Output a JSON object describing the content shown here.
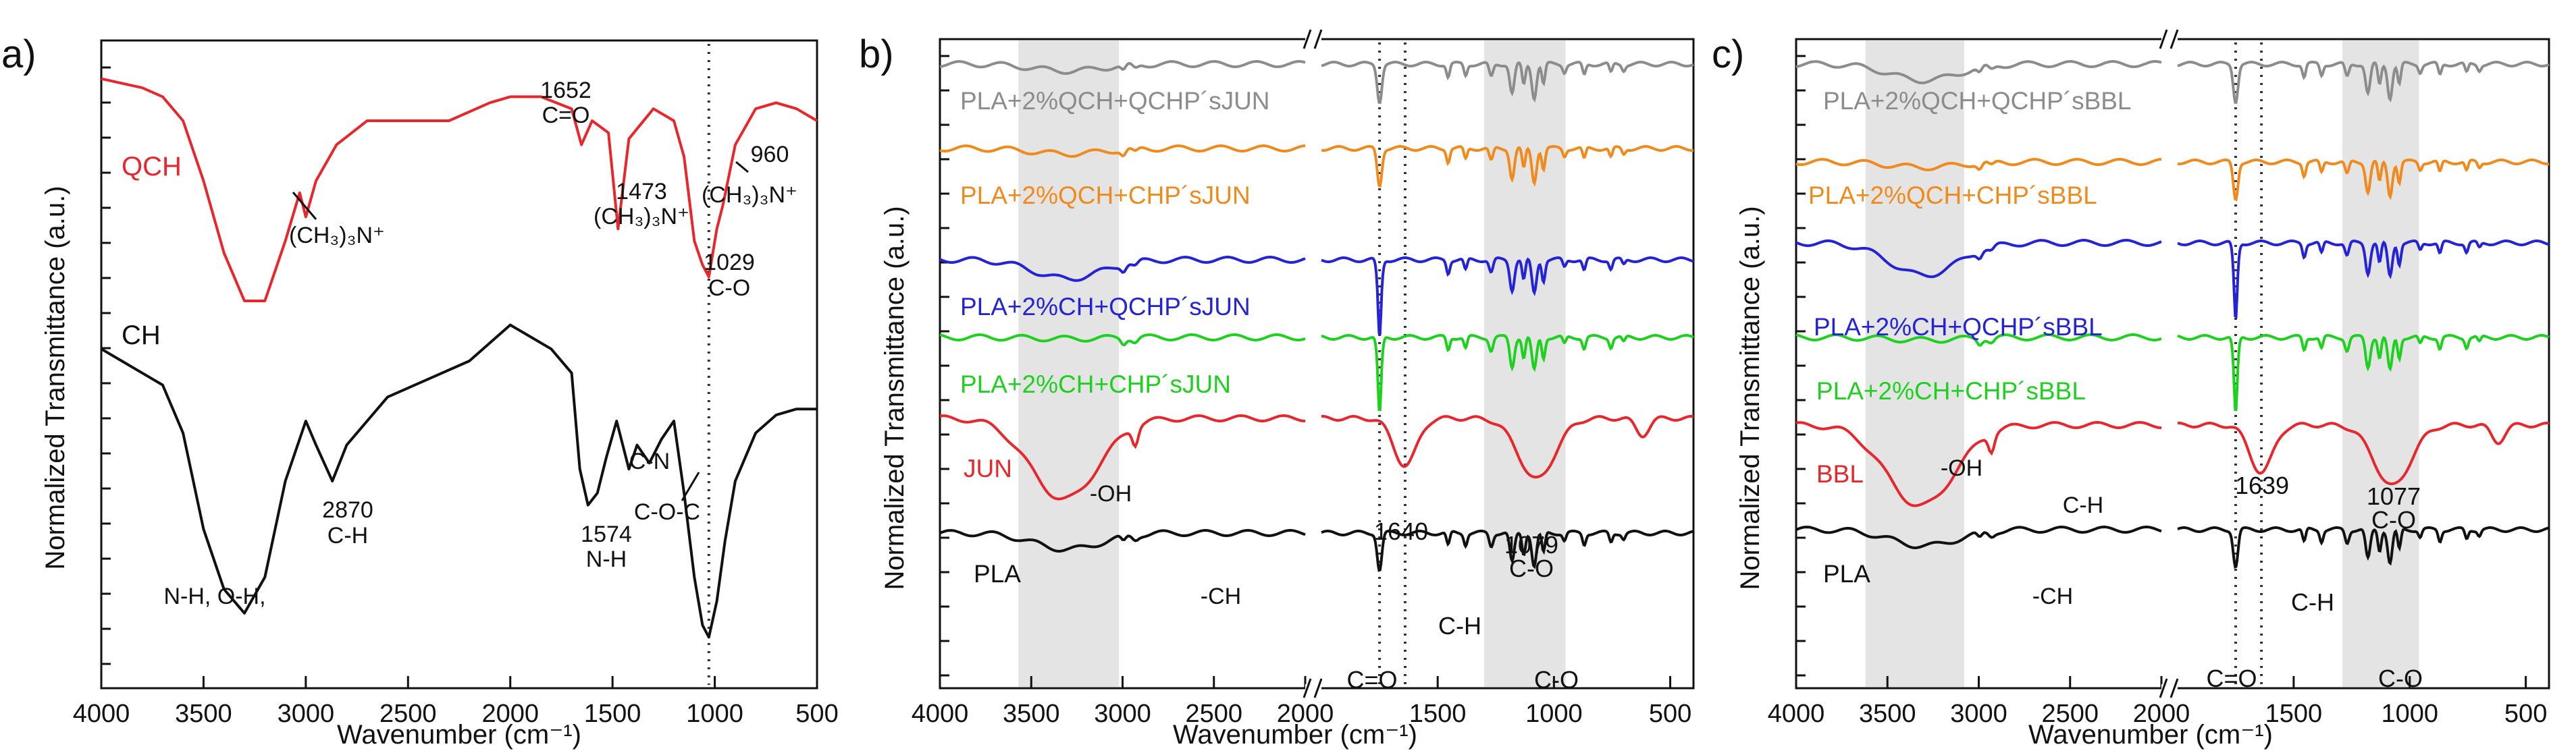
{
  "chart_data": [
    {
      "panel_label": "a)",
      "type": "line",
      "xlabel": "Wavenumber (cm⁻¹)",
      "ylabel": "Normalized Transmittance (a.u.)",
      "xlim": [
        4000,
        500
      ],
      "x_ticks": [
        "4000",
        "3500",
        "3000",
        "2500",
        "2000",
        "1500",
        "1000",
        "500"
      ],
      "reference_line": 1029,
      "series": [
        {
          "name": "QCH",
          "color": "#e8262b",
          "points": [
            [
              4000,
              0.97
            ],
            [
              3800,
              0.955
            ],
            [
              3700,
              0.94
            ],
            [
              3600,
              0.9
            ],
            [
              3500,
              0.8
            ],
            [
              3400,
              0.68
            ],
            [
              3300,
              0.6
            ],
            [
              3200,
              0.6
            ],
            [
              3100,
              0.7
            ],
            [
              3030,
              0.78
            ],
            [
              3000,
              0.74
            ],
            [
              2950,
              0.8
            ],
            [
              2850,
              0.86
            ],
            [
              2700,
              0.9
            ],
            [
              2500,
              0.9
            ],
            [
              2300,
              0.9
            ],
            [
              2100,
              0.93
            ],
            [
              2000,
              0.94
            ],
            [
              1850,
              0.94
            ],
            [
              1700,
              0.92
            ],
            [
              1652,
              0.86
            ],
            [
              1600,
              0.9
            ],
            [
              1520,
              0.88
            ],
            [
              1473,
              0.72
            ],
            [
              1420,
              0.87
            ],
            [
              1300,
              0.92
            ],
            [
              1200,
              0.9
            ],
            [
              1150,
              0.84
            ],
            [
              1100,
              0.7
            ],
            [
              1060,
              0.66
            ],
            [
              1029,
              0.64
            ],
            [
              990,
              0.72
            ],
            [
              960,
              0.76
            ],
            [
              900,
              0.86
            ],
            [
              800,
              0.92
            ],
            [
              700,
              0.93
            ],
            [
              600,
              0.92
            ],
            [
              500,
              0.9
            ]
          ],
          "label_value_offset": 0
        },
        {
          "name": "CH",
          "color": "#111111",
          "points": [
            [
              4000,
              0.52
            ],
            [
              3900,
              0.5
            ],
            [
              3800,
              0.48
            ],
            [
              3700,
              0.46
            ],
            [
              3600,
              0.38
            ],
            [
              3500,
              0.22
            ],
            [
              3400,
              0.12
            ],
            [
              3300,
              0.08
            ],
            [
              3200,
              0.14
            ],
            [
              3100,
              0.3
            ],
            [
              3000,
              0.4
            ],
            [
              2950,
              0.36
            ],
            [
              2870,
              0.3
            ],
            [
              2800,
              0.36
            ],
            [
              2600,
              0.44
            ],
            [
              2400,
              0.47
            ],
            [
              2200,
              0.5
            ],
            [
              2000,
              0.56
            ],
            [
              1900,
              0.54
            ],
            [
              1800,
              0.52
            ],
            [
              1700,
              0.48
            ],
            [
              1660,
              0.32
            ],
            [
              1620,
              0.26
            ],
            [
              1574,
              0.28
            ],
            [
              1530,
              0.34
            ],
            [
              1480,
              0.4
            ],
            [
              1420,
              0.32
            ],
            [
              1380,
              0.36
            ],
            [
              1320,
              0.33
            ],
            [
              1260,
              0.37
            ],
            [
              1200,
              0.4
            ],
            [
              1150,
              0.28
            ],
            [
              1100,
              0.14
            ],
            [
              1060,
              0.06
            ],
            [
              1029,
              0.04
            ],
            [
              990,
              0.1
            ],
            [
              950,
              0.2
            ],
            [
              900,
              0.3
            ],
            [
              800,
              0.38
            ],
            [
              700,
              0.41
            ],
            [
              600,
              0.42
            ],
            [
              500,
              0.42
            ]
          ]
        }
      ],
      "annotations": [
        {
          "text": "1652",
          "text2": "C=O",
          "x": 1652,
          "y": 0.86
        },
        {
          "text": "(CH₃)₃N⁺",
          "x": 3030,
          "y": 0.78,
          "arrow": true
        },
        {
          "text": "1473",
          "text2": "(CH₃)₃N⁺",
          "x": 1473,
          "y": 0.72
        },
        {
          "text": "960",
          "text2": "(CH₃)₃N⁺",
          "x": 960,
          "y": 0.76,
          "arrow": true
        },
        {
          "text": "1029",
          "text2": "C-O",
          "x": 1029,
          "y": 0.55
        },
        {
          "text": "2870",
          "text2": "C-H",
          "x": 2870,
          "y": 0.3
        },
        {
          "text": "N-H, O-H,",
          "x": 3300,
          "y": 0.08
        },
        {
          "text": "1574",
          "text2": "N-H",
          "x": 1574,
          "y": 0.28
        },
        {
          "text": "C-N",
          "x": 1380,
          "y": 0.36
        },
        {
          "text": "C-O-C",
          "x": 1150,
          "y": 0.28
        }
      ]
    },
    {
      "panel_label": "b)",
      "type": "line",
      "xlabel": "Wavenumber (cm⁻¹)",
      "ylabel": "Normalized Transmittance (a.u.)",
      "xlim_left": [
        4000,
        2000
      ],
      "xlim_right": [
        2000,
        400
      ],
      "x_ticks_left": [
        "4000",
        "3500",
        "3000",
        "2500",
        "2000"
      ],
      "x_ticks_right": [
        "1500",
        "1000",
        "500"
      ],
      "reference_lines": [
        1750,
        1640
      ],
      "shaded_ranges": [
        [
          3570,
          3020
        ],
        [
          1300,
          950
        ]
      ],
      "series": [
        {
          "name": "PLA+2%QCH+QCHP´sJUN",
          "color": "#8c8c8c"
        },
        {
          "name": "PLA+2%QCH+CHP´sJUN",
          "color": "#f08a1d"
        },
        {
          "name": "PLA+2%CH+QCHP´sJUN",
          "color": "#2424d6"
        },
        {
          "name": "PLA+2%CH+CHP´sJUN",
          "color": "#1fd11f"
        },
        {
          "name": "JUN",
          "color": "#e8262b"
        },
        {
          "name": "PLA",
          "color": "#111111"
        }
      ],
      "annotations": [
        {
          "text": "-OH",
          "x": 3200
        },
        {
          "text": "-CH",
          "x": 2900
        },
        {
          "text": "1640",
          "x": 1640
        },
        {
          "text": "1079",
          "text2": "C-O",
          "x": 1079
        },
        {
          "text": "C=O",
          "x": 1750
        },
        {
          "text": "C-H",
          "x": 1450
        },
        {
          "text": "C-O",
          "x": 1100
        }
      ]
    },
    {
      "panel_label": "c)",
      "type": "line",
      "xlabel": "Wavenumber (cm⁻¹)",
      "ylabel": "Normalized Transmittance (a.u.)",
      "xlim_left": [
        4000,
        2000
      ],
      "xlim_right": [
        2000,
        400
      ],
      "x_ticks_left": [
        "4000",
        "3500",
        "3000",
        "2500",
        "2000"
      ],
      "x_ticks_right": [
        "1500",
        "1000",
        "500"
      ],
      "reference_lines": [
        1750,
        1639
      ],
      "shaded_ranges": [
        [
          3620,
          3080
        ],
        [
          1290,
          960
        ]
      ],
      "series": [
        {
          "name": "PLA+2%QCH+QCHP´sBBL",
          "color": "#8c8c8c"
        },
        {
          "name": "PLA+2%QCH+CHP´sBBL",
          "color": "#f08a1d"
        },
        {
          "name": "PLA+2%CH+QCHP´sBBL",
          "color": "#2424d6"
        },
        {
          "name": "PLA+2%CH+CHP´sBBL",
          "color": "#1fd11f"
        },
        {
          "name": "BBL",
          "color": "#e8262b"
        },
        {
          "name": "PLA",
          "color": "#111111"
        }
      ],
      "annotations": [
        {
          "text": "-OH",
          "x": 3300
        },
        {
          "text": "C-H",
          "x": 2950
        },
        {
          "text": "-CH",
          "x": 2900
        },
        {
          "text": "1639",
          "x": 1639
        },
        {
          "text": "1077",
          "text2": "C-O",
          "x": 1077
        },
        {
          "text": "C=O",
          "x": 1750
        },
        {
          "text": "C-H",
          "x": 1450
        },
        {
          "text": "C-O",
          "x": 1100
        }
      ]
    }
  ]
}
